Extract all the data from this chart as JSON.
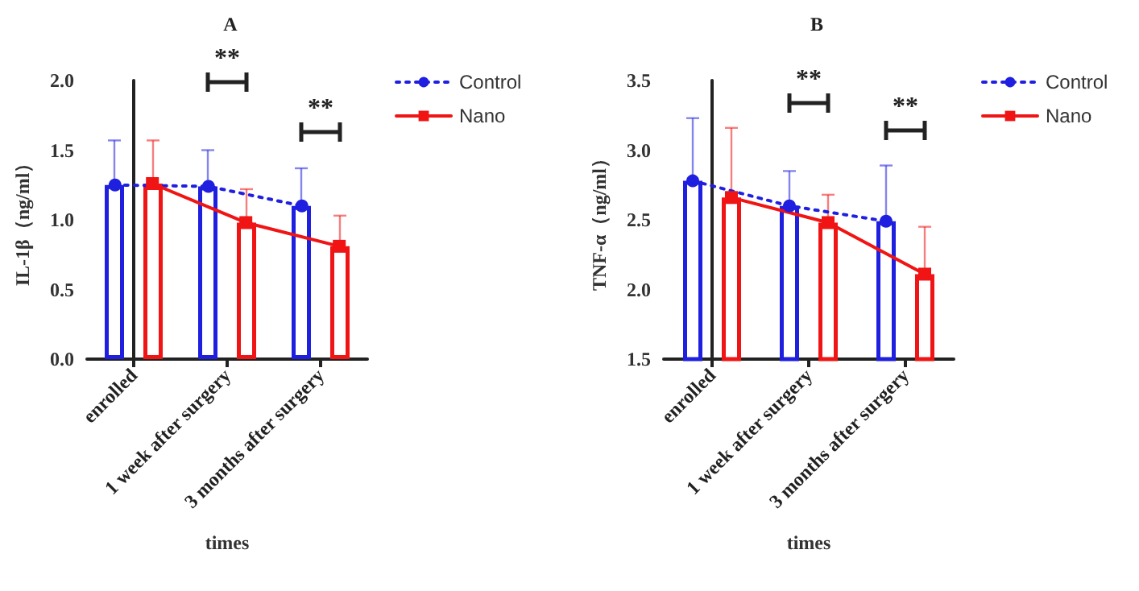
{
  "chart_data": [
    {
      "type": "bar",
      "title": "A",
      "xlabel": "times",
      "ylabel": "IL-1β（ng/ml）",
      "categories": [
        "enrolled",
        "1 week after surgery",
        "3 months after surgery"
      ],
      "series": [
        {
          "color": "#1f1fe0",
          "values": [
            1.25,
            1.24,
            1.1
          ],
          "errors": [
            0.32,
            0.26,
            0.27
          ]
        },
        {
          "color": "#f01414",
          "values": [
            1.26,
            0.98,
            0.81
          ],
          "errors": [
            0.31,
            0.24,
            0.22
          ]
        },
        {
          "name": "Control",
          "type": "line",
          "color": "#1f1fe0",
          "values": [
            1.25,
            1.24,
            1.1
          ],
          "marker": "circle",
          "line_style": "dotted"
        },
        {
          "name": "Nano",
          "type": "line",
          "color": "#f01414",
          "values": [
            1.26,
            0.98,
            0.81
          ],
          "marker": "square",
          "line_style": "solid"
        }
      ],
      "ylim": [
        0,
        2
      ],
      "yticks": [
        {
          "value": 0,
          "label": "0.0"
        },
        {
          "value": 0.5,
          "label": "0.5"
        },
        {
          "value": 1,
          "label": "1.0"
        },
        {
          "value": 1.5,
          "label": "1.5"
        },
        {
          "value": 2,
          "label": "2.0"
        }
      ],
      "annotations": [
        "**",
        "**"
      ],
      "legend": "top right"
    },
    {
      "type": "bar",
      "title": "B",
      "xlabel": "times",
      "ylabel": "TNF-α（ng/ml）",
      "categories": [
        "enrolled",
        "1 week after surgery",
        "3 months after surgery"
      ],
      "series": [
        {
          "color": "#1f1fe0",
          "values": [
            2.78,
            2.6,
            2.49
          ],
          "errors": [
            0.45,
            0.25,
            0.4
          ]
        },
        {
          "color": "#f01414",
          "values": [
            2.66,
            2.48,
            2.11
          ],
          "errors": [
            0.5,
            0.2,
            0.34
          ]
        },
        {
          "name": "Control",
          "type": "line",
          "color": "#1f1fe0",
          "values": [
            2.78,
            2.6,
            2.49
          ],
          "marker": "circle",
          "line_style": "dotted"
        },
        {
          "name": "Nano",
          "type": "line",
          "color": "#f01414",
          "values": [
            2.66,
            2.48,
            2.11
          ],
          "marker": "square",
          "line_style": "solid"
        }
      ],
      "ylim": [
        1.5,
        3.5
      ],
      "yticks": [
        {
          "value": 1.5,
          "label": "1.5"
        },
        {
          "value": 2,
          "label": "2.0"
        },
        {
          "value": 2.5,
          "label": "2.5"
        },
        {
          "value": 3,
          "label": "3.0"
        },
        {
          "value": 3.5,
          "label": "3.5"
        }
      ],
      "annotations": [
        "**",
        "**"
      ],
      "legend": "top right"
    }
  ]
}
